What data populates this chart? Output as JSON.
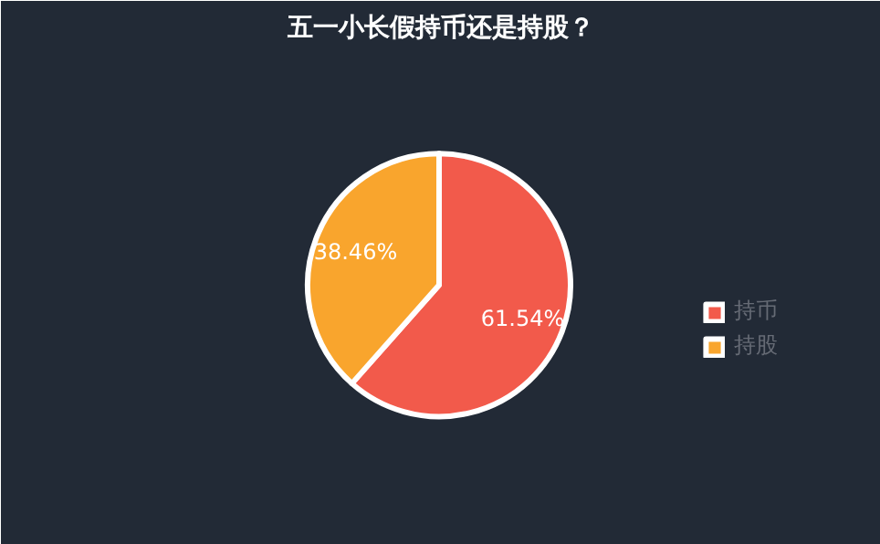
{
  "chart_data": {
    "type": "pie",
    "title": "五一小长假持币还是持股？",
    "categories": [
      "持币",
      "持股"
    ],
    "values": [
      61.54,
      38.46
    ],
    "colors": [
      "#f25a4b",
      "#f9a52d"
    ],
    "value_labels": [
      "61.54%",
      "38.46%"
    ],
    "legend": "right"
  }
}
